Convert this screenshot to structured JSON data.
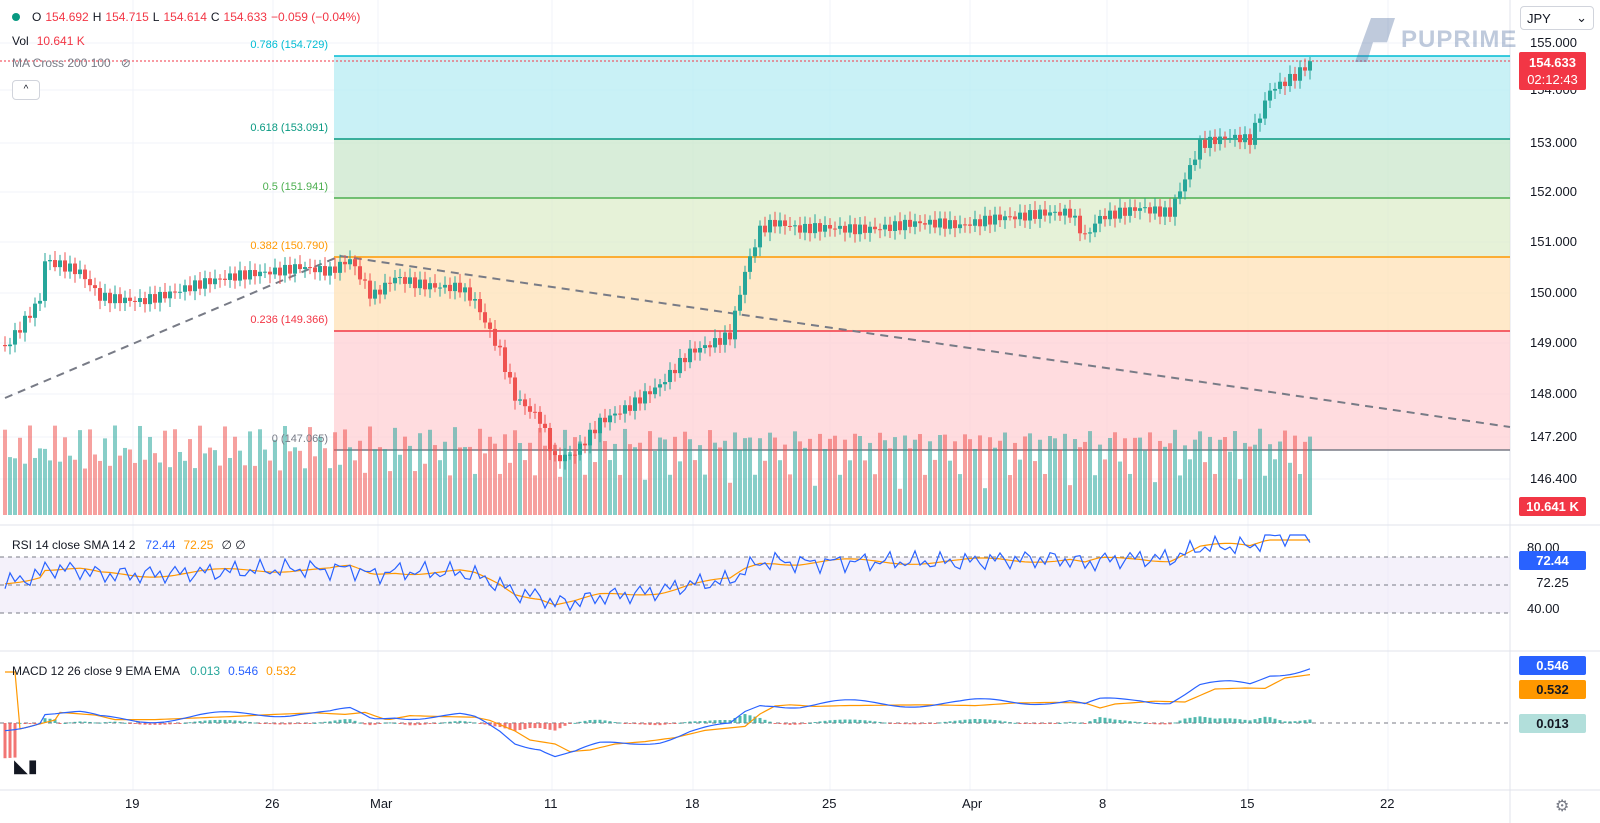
{
  "header": {
    "ohlc": [
      {
        "k": "O",
        "v": "154.692"
      },
      {
        "k": "H",
        "v": "154.715"
      },
      {
        "k": "L",
        "v": "154.614"
      },
      {
        "k": "C",
        "v": "154.633"
      }
    ],
    "change": "−0.059 (−0.04%)",
    "vol_label": "Vol",
    "vol_value": "10.641 K",
    "ma_label": "MA Cross 200 100",
    "collapse_label": "^"
  },
  "symbol_selector": {
    "value": "JPY",
    "chevron": "⌄"
  },
  "watermark": {
    "text": "PUPRIME"
  },
  "price_axis": {
    "labels": [
      "155.000",
      "154.000",
      "153.000",
      "152.000",
      "151.000",
      "150.000",
      "149.000",
      "148.000",
      "147.200",
      "146.400"
    ],
    "current_price": "154.633",
    "countdown": "02:12:43",
    "volume_tag": "10.641 K"
  },
  "fib_levels": [
    {
      "label": "0.786 (154.729)",
      "color": "#00bcd4"
    },
    {
      "label": "0.618 (153.091)",
      "color": "#089981"
    },
    {
      "label": "0.5 (151.941)",
      "color": "#4caf50"
    },
    {
      "label": "0.382 (150.790)",
      "color": "#ff9800"
    },
    {
      "label": "0.236 (149.366)",
      "color": "#f23645"
    },
    {
      "label": "0 (147.065)",
      "color": "#787b86"
    }
  ],
  "rsi": {
    "title": "RSI 14 close SMA 14 2",
    "value1": "72.44",
    "value2": "72.25",
    "extra": "∅ ∅",
    "axis_labels": [
      "80.00",
      "40.00"
    ],
    "tag1": "72.44",
    "tag2": "72.25"
  },
  "macd": {
    "title": "MACD 12 26 close 9 EMA EMA",
    "hist": "0.013",
    "macd": "0.546",
    "signal": "0.532",
    "tag_macd": "0.546",
    "tag_signal": "0.532",
    "tag_hist": "0.013"
  },
  "time_axis": {
    "labels": [
      "19",
      "26",
      "Mar",
      "11",
      "18",
      "25",
      "Apr",
      "8",
      "15",
      "22"
    ]
  },
  "colors": {
    "up": "#26a69a",
    "down": "#ef5350",
    "rsi": "#2962ff",
    "signal": "#ff9800",
    "accent": "#2962ff"
  },
  "icons": {
    "logo": "tradingview-logo",
    "settings": "gear-icon",
    "eye": "eye-off-icon"
  }
}
